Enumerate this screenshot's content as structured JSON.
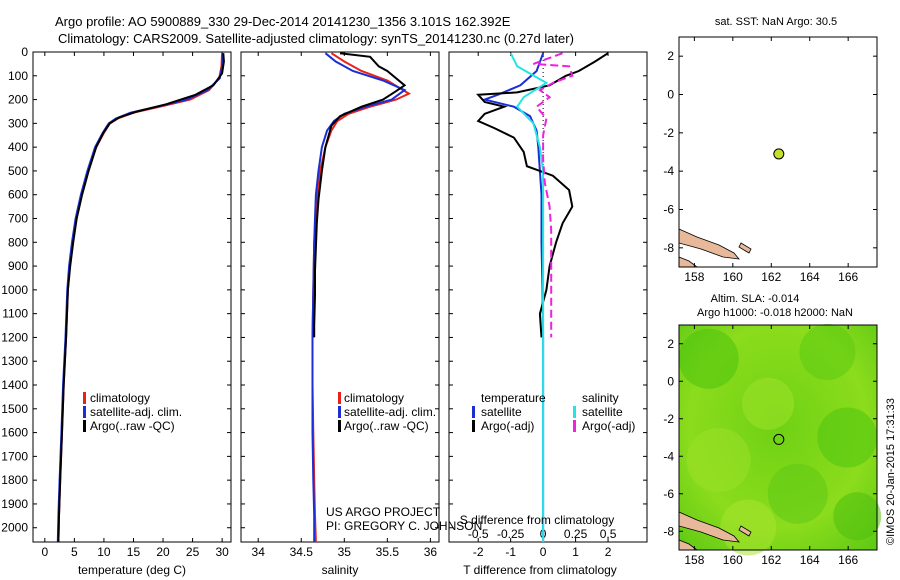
{
  "title": {
    "line1": "Argo profile: AO 5900889_330 29-Dec-2014 20141230_1356 3.101S 162.392E",
    "line2": "Climatology: CARS2009. Satellite-adjusted climatology: synTS_20141230.nc (0.27d later)"
  },
  "depth_ticks": [
    "0",
    "100",
    "200",
    "300",
    "400",
    "500",
    "600",
    "700",
    "800",
    "900",
    "1000",
    "1100",
    "1200",
    "1300",
    "1400",
    "1500",
    "1600",
    "1700",
    "1800",
    "1900",
    "2000"
  ],
  "colors": {
    "climatology": "#e8221a",
    "satellite": "#1a2fd6",
    "argo": "#000000",
    "salinity_satellite": "#22e5e5",
    "salinity_argo": "#ee22dd",
    "sst_map_ocean": "#ffffff",
    "land": "#e8b89a",
    "sla_map_green": "#7ad61a",
    "argo_marker": "#c6e02a"
  },
  "chart_data": [
    {
      "type": "line",
      "panel": "temperature",
      "xlabel": "temperature (deg C)",
      "ylabel": "",
      "xlim": [
        -2,
        31.5
      ],
      "ylim": [
        2060,
        0
      ],
      "x_ticks": [
        "0",
        "5",
        "10",
        "15",
        "20",
        "25",
        "30"
      ],
      "legend": [
        "climatology",
        "satellite-adj. clim.",
        "Argo(..raw -QC)"
      ],
      "legend_placement": "lower-middle",
      "series": [
        {
          "name": "climatology",
          "color_key": "climatology",
          "points": [
            [
              30.0,
              5
            ],
            [
              29.9,
              60
            ],
            [
              29.5,
              110
            ],
            [
              27.8,
              160
            ],
            [
              24.6,
              200
            ],
            [
              19.5,
              230
            ],
            [
              15.0,
              255
            ],
            [
              12.3,
              280
            ],
            [
              11.0,
              300
            ],
            [
              10.0,
              340
            ],
            [
              8.7,
              400
            ],
            [
              7.3,
              500
            ],
            [
              6.2,
              600
            ],
            [
              5.3,
              700
            ],
            [
              4.7,
              800
            ],
            [
              4.2,
              900
            ],
            [
              3.9,
              1000
            ],
            [
              3.6,
              1200
            ],
            [
              3.2,
              1400
            ],
            [
              2.9,
              1600
            ],
            [
              2.6,
              1800
            ],
            [
              2.4,
              1950
            ],
            [
              2.3,
              2060
            ]
          ]
        },
        {
          "name": "satellite-adj. clim.",
          "color_key": "satellite",
          "points": [
            [
              30.1,
              5
            ],
            [
              30.0,
              60
            ],
            [
              29.6,
              110
            ],
            [
              27.5,
              160
            ],
            [
              24.0,
              200
            ],
            [
              19.0,
              230
            ],
            [
              14.5,
              255
            ],
            [
              12.0,
              280
            ],
            [
              10.8,
              300
            ],
            [
              9.8,
              340
            ],
            [
              8.5,
              400
            ],
            [
              7.2,
              500
            ],
            [
              6.1,
              600
            ],
            [
              5.2,
              700
            ],
            [
              4.6,
              800
            ],
            [
              4.1,
              900
            ],
            [
              3.8,
              1000
            ],
            [
              3.5,
              1200
            ],
            [
              3.1,
              1400
            ],
            [
              2.8,
              1600
            ],
            [
              2.5,
              1800
            ],
            [
              2.3,
              1950
            ],
            [
              2.2,
              2060
            ]
          ]
        },
        {
          "name": "Argo(..raw -QC)",
          "color_key": "argo",
          "points": [
            [
              30.2,
              5
            ],
            [
              30.3,
              40
            ],
            [
              30.0,
              90
            ],
            [
              28.5,
              140
            ],
            [
              25.5,
              180
            ],
            [
              20.5,
              220
            ],
            [
              15.6,
              250
            ],
            [
              12.6,
              275
            ],
            [
              11.0,
              300
            ],
            [
              9.9,
              340
            ],
            [
              8.7,
              400
            ],
            [
              7.4,
              500
            ],
            [
              6.3,
              600
            ],
            [
              5.4,
              700
            ],
            [
              4.8,
              800
            ],
            [
              4.3,
              900
            ],
            [
              3.9,
              1000
            ],
            [
              3.6,
              1200
            ],
            [
              3.2,
              1400
            ],
            [
              2.9,
              1600
            ],
            [
              2.6,
              1800
            ],
            [
              2.4,
              1950
            ],
            [
              2.3,
              2060
            ]
          ]
        }
      ]
    },
    {
      "type": "line",
      "panel": "salinity",
      "xlabel": "salinity",
      "ylabel": "",
      "xlim": [
        33.8,
        36.1
      ],
      "ylim": [
        2060,
        0
      ],
      "x_ticks": [
        "34",
        "34.5",
        "35",
        "35.5",
        "36"
      ],
      "legend": [
        "climatology",
        "satellite-adj. clim.",
        "Argo(..raw -QC)"
      ],
      "legend_placement": "lower-middle",
      "series": [
        {
          "name": "climatology",
          "color_key": "climatology",
          "points": [
            [
              34.85,
              5
            ],
            [
              35.0,
              40
            ],
            [
              35.2,
              80
            ],
            [
              35.5,
              120
            ],
            [
              35.75,
              175
            ],
            [
              35.6,
              200
            ],
            [
              35.3,
              230
            ],
            [
              35.05,
              260
            ],
            [
              34.92,
              290
            ],
            [
              34.85,
              330
            ],
            [
              34.78,
              400
            ],
            [
              34.72,
              500
            ],
            [
              34.69,
              600
            ],
            [
              34.67,
              700
            ],
            [
              34.65,
              800
            ],
            [
              34.64,
              1000
            ],
            [
              34.63,
              1200
            ],
            [
              34.63,
              1400
            ],
            [
              34.64,
              1600
            ],
            [
              34.65,
              1800
            ],
            [
              34.66,
              1950
            ],
            [
              34.67,
              2060
            ]
          ]
        },
        {
          "name": "satellite-adj. clim.",
          "color_key": "satellite",
          "points": [
            [
              34.78,
              5
            ],
            [
              34.9,
              40
            ],
            [
              35.1,
              80
            ],
            [
              35.45,
              120
            ],
            [
              35.7,
              160
            ],
            [
              35.55,
              200
            ],
            [
              35.25,
              230
            ],
            [
              35.0,
              260
            ],
            [
              34.88,
              290
            ],
            [
              34.8,
              330
            ],
            [
              34.74,
              400
            ],
            [
              34.7,
              500
            ],
            [
              34.67,
              600
            ],
            [
              34.66,
              700
            ],
            [
              34.65,
              800
            ],
            [
              34.64,
              1000
            ],
            [
              34.63,
              1200
            ],
            [
              34.63,
              1400
            ],
            [
              34.63,
              1600
            ],
            [
              34.64,
              1800
            ],
            [
              34.65,
              1950
            ],
            [
              34.65,
              2060
            ]
          ]
        },
        {
          "name": "Argo(..raw -QC)",
          "color_key": "argo",
          "points": [
            [
              34.95,
              5
            ],
            [
              35.3,
              20
            ],
            [
              35.4,
              60
            ],
            [
              35.5,
              80
            ],
            [
              35.7,
              140
            ],
            [
              35.6,
              165
            ],
            [
              35.45,
              200
            ],
            [
              35.2,
              230
            ],
            [
              34.95,
              270
            ],
            [
              34.85,
              310
            ],
            [
              34.78,
              400
            ],
            [
              34.74,
              500
            ],
            [
              34.7,
              620
            ],
            [
              34.68,
              720
            ],
            [
              34.67,
              820
            ],
            [
              34.66,
              920
            ],
            [
              34.66,
              1020
            ],
            [
              34.65,
              1150
            ],
            [
              34.65,
              1200
            ]
          ]
        }
      ]
    },
    {
      "type": "line",
      "panel": "differences",
      "xlabel": "T difference from climatology",
      "xlabel_top": "S difference from climatology",
      "ylabel": "",
      "ylim": [
        2060,
        0
      ],
      "x_ticks_T": [
        "-2",
        "-1",
        "0",
        "1",
        "2"
      ],
      "x_ticks_S": [
        "-0.5",
        "-0.25",
        "0",
        "0.25",
        "0.5"
      ],
      "x_ticks_S_values": [
        -2,
        -1,
        0,
        1,
        2
      ],
      "xlim": [
        -2.9,
        3.2
      ],
      "legend_groups": [
        {
          "header": "temperature",
          "items": [
            {
              "label": "satellite",
              "color_key": "satellite"
            },
            {
              "label": "Argo(-adj)",
              "color_key": "argo"
            }
          ]
        },
        {
          "header": "salinity",
          "items": [
            {
              "label": "satellite",
              "color_key": "salinity_satellite"
            },
            {
              "label": "Argo(-adj)",
              "color_key": "salinity_argo"
            }
          ]
        }
      ],
      "series": [
        {
          "name": "temperature satellite",
          "color_key": "satellite",
          "points": [
            [
              0.0,
              5
            ],
            [
              -0.2,
              80
            ],
            [
              -0.7,
              140
            ],
            [
              -1.4,
              180
            ],
            [
              -1.8,
              200
            ],
            [
              -0.9,
              230
            ],
            [
              -0.4,
              270
            ],
            [
              -0.2,
              330
            ],
            [
              -0.15,
              400
            ],
            [
              -0.1,
              500
            ],
            [
              -0.05,
              600
            ],
            [
              -0.05,
              700
            ],
            [
              -0.05,
              800
            ],
            [
              -0.02,
              1000
            ],
            [
              0.0,
              1200
            ],
            [
              0.0,
              1400
            ],
            [
              0.0,
              1600
            ],
            [
              0.0,
              1800
            ],
            [
              0.0,
              2000
            ],
            [
              0.0,
              2060
            ]
          ]
        },
        {
          "name": "temperature Argo(-adj)",
          "color_key": "argo",
          "points": [
            [
              2.0,
              5
            ],
            [
              1.6,
              40
            ],
            [
              1.1,
              80
            ],
            [
              0.7,
              100
            ],
            [
              0.2,
              140
            ],
            [
              -0.8,
              170
            ],
            [
              -2.0,
              180
            ],
            [
              -1.8,
              210
            ],
            [
              -1.2,
              230
            ],
            [
              -1.8,
              260
            ],
            [
              -2.0,
              290
            ],
            [
              -1.5,
              320
            ],
            [
              -0.9,
              360
            ],
            [
              -0.6,
              420
            ],
            [
              -0.5,
              480
            ],
            [
              0.3,
              520
            ],
            [
              0.8,
              580
            ],
            [
              0.9,
              650
            ],
            [
              0.6,
              720
            ],
            [
              0.4,
              800
            ],
            [
              0.2,
              900
            ],
            [
              0.1,
              1000
            ],
            [
              -0.1,
              1100
            ],
            [
              -0.05,
              1200
            ]
          ]
        },
        {
          "name": "salinity satellite",
          "color_key": "salinity_satellite",
          "points": [
            [
              -1.0,
              5
            ],
            [
              -0.8,
              60
            ],
            [
              0.1,
              130
            ],
            [
              -0.6,
              190
            ],
            [
              -0.8,
              230
            ],
            [
              -0.3,
              300
            ],
            [
              -0.1,
              400
            ],
            [
              0.0,
              500
            ],
            [
              0.0,
              700
            ],
            [
              0.0,
              900
            ],
            [
              0.0,
              1200
            ],
            [
              0.0,
              1500
            ],
            [
              0.0,
              1800
            ],
            [
              0.0,
              2060
            ]
          ]
        },
        {
          "name": "salinity Argo(-adj)",
          "color_key": "salinity_argo",
          "points": [
            [
              0.6,
              5
            ],
            [
              0.1,
              30
            ],
            [
              -0.3,
              50
            ],
            [
              0.8,
              60
            ],
            [
              0.9,
              100
            ],
            [
              0.3,
              130
            ],
            [
              -0.1,
              160
            ],
            [
              0.2,
              190
            ],
            [
              -0.2,
              230
            ],
            [
              0.1,
              280
            ],
            [
              0.0,
              350
            ],
            [
              0.0,
              450
            ],
            [
              0.05,
              550
            ],
            [
              0.2,
              650
            ],
            [
              0.25,
              750
            ],
            [
              0.25,
              900
            ],
            [
              0.25,
              1050
            ],
            [
              0.25,
              1200
            ]
          ]
        }
      ]
    },
    {
      "type": "scatter",
      "panel": "sst_map",
      "title": "sat. SST: NaN Argo: 30.5",
      "xlim": [
        157.2,
        167.5
      ],
      "ylim": [
        -9.0,
        3.0
      ],
      "x_ticks": [
        "158",
        "160",
        "162",
        "164",
        "166"
      ],
      "y_ticks": [
        "2",
        "0",
        "-2",
        "-4",
        "-6",
        "-8"
      ],
      "marker": {
        "lon": 162.392,
        "lat": -3.101
      }
    },
    {
      "type": "heatmap",
      "panel": "sla_map",
      "title_line1": "Altim. SLA: -0.014",
      "title_line2": "Argo h1000: -0.018 h2000: NaN",
      "xlim": [
        157.2,
        167.5
      ],
      "ylim": [
        -9.0,
        3.0
      ],
      "x_ticks": [
        "158",
        "160",
        "162",
        "164",
        "166"
      ],
      "y_ticks": [
        "2",
        "0",
        "-2",
        "-4",
        "-6",
        "-8"
      ],
      "marker": {
        "lon": 162.392,
        "lat": -3.101
      }
    }
  ],
  "annotations": {
    "project_line1": "US ARGO PROJECT",
    "project_line2": "PI: GREGORY C. JOHNSON",
    "credit": "©IMOS 20-Jan-2015 17:31:33"
  }
}
